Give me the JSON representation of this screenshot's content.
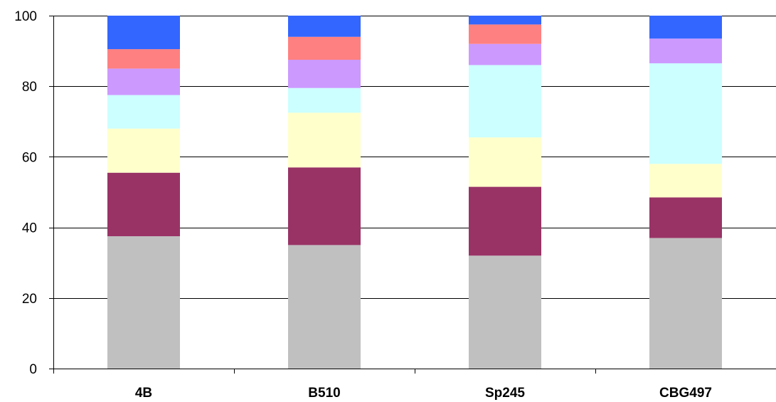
{
  "chart_data": {
    "type": "bar",
    "stacked": true,
    "title": "",
    "xlabel": "",
    "ylabel": "",
    "ylim": [
      0,
      100
    ],
    "yticks": [
      0,
      20,
      40,
      60,
      80,
      100
    ],
    "grid": true,
    "categories": [
      "4B",
      "B510",
      "Sp245",
      "CBG497"
    ],
    "series": [
      {
        "color": "#c0c0c0",
        "values": [
          37.5,
          35,
          32,
          37
        ]
      },
      {
        "color": "#993366",
        "values": [
          18,
          22,
          19.5,
          11.5
        ]
      },
      {
        "color": "#ffffcc",
        "values": [
          12.5,
          15.5,
          14,
          9.5
        ]
      },
      {
        "color": "#ccffff",
        "values": [
          9.5,
          7,
          20.5,
          28.5
        ]
      },
      {
        "color": "#cc99ff",
        "values": [
          7.5,
          8,
          6,
          7
        ]
      },
      {
        "color": "#ff8080",
        "values": [
          5.5,
          6.5,
          5.5,
          0
        ]
      },
      {
        "color": "#3366ff",
        "values": [
          9.5,
          6,
          2.5,
          6.5
        ]
      }
    ]
  }
}
